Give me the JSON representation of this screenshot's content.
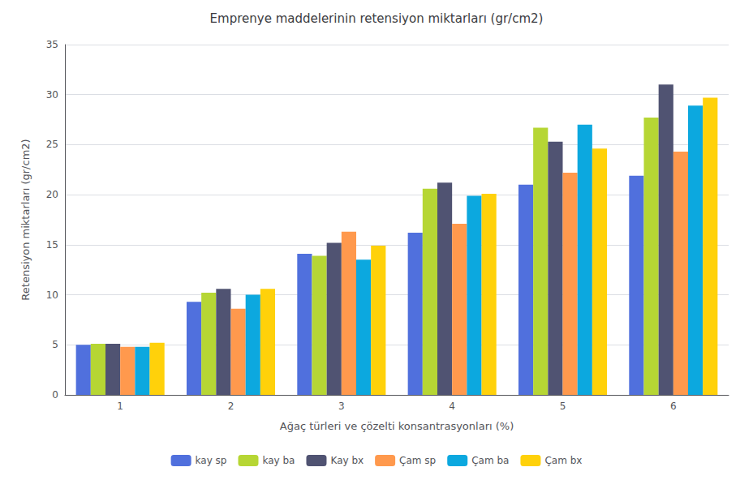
{
  "chart_data": {
    "type": "bar",
    "title": "Emprenye maddelerinin retensiyon miktarları (gr/cm2)",
    "xlabel": "Ağaç türleri ve çözelti konsantrasyonları (%)",
    "ylabel": "Retensiyon miktarları (gr/cm2)",
    "categories": [
      1,
      2,
      3,
      4,
      5,
      6
    ],
    "series": [
      {
        "name": "kay sp",
        "values": [
          5.0,
          9.3,
          14.1,
          16.2,
          21.0,
          21.9
        ]
      },
      {
        "name": "kay ba",
        "values": [
          5.1,
          10.2,
          13.9,
          20.6,
          26.7,
          27.7
        ]
      },
      {
        "name": "Kay bx",
        "values": [
          5.1,
          10.6,
          15.2,
          21.2,
          25.3,
          31.0
        ]
      },
      {
        "name": "Çam sp",
        "values": [
          4.8,
          8.6,
          16.3,
          17.1,
          22.2,
          24.3
        ]
      },
      {
        "name": "Çam ba",
        "values": [
          4.8,
          10.0,
          13.5,
          19.9,
          27.0,
          28.9
        ]
      },
      {
        "name": "Çam bx",
        "values": [
          5.2,
          10.6,
          14.9,
          20.1,
          24.6,
          29.7
        ]
      }
    ],
    "ylim": [
      0,
      35
    ],
    "yticks": [
      0,
      5,
      10,
      15,
      20,
      25,
      30,
      35
    ],
    "grid": true,
    "legend": "bottom"
  }
}
